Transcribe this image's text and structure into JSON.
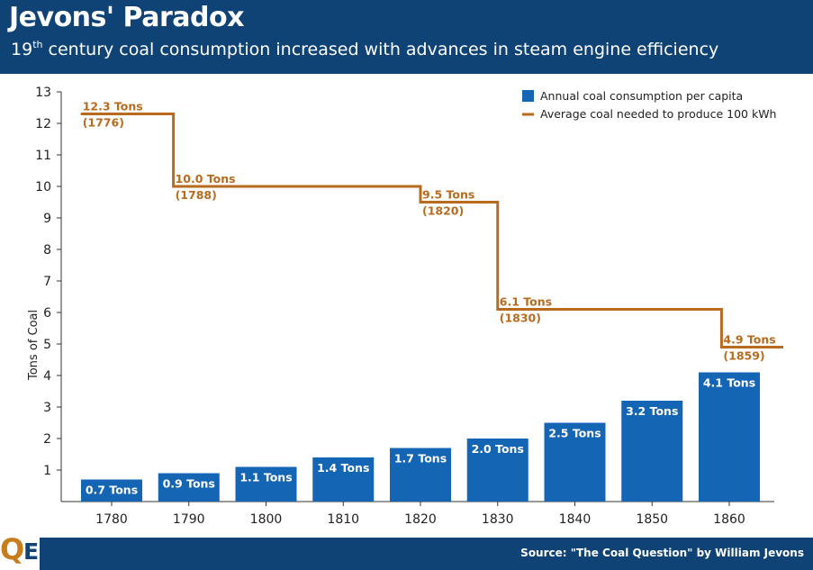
{
  "header": {
    "title": "Jevons' Paradox",
    "subtitle_pre": "19",
    "subtitle_sup": "th",
    "subtitle_post": " century coal consumption increased with advances in steam engine efficiency"
  },
  "footer": {
    "logo_q": "Q",
    "logo_e": "E",
    "source": "Source: \"The Coal Question\" by William Jevons"
  },
  "colors": {
    "header_bg": "#0f4376",
    "bar": "#1565b5",
    "step_line": "#b86b1f",
    "accent": "#c77d1e"
  },
  "chart_data": {
    "type": "bar",
    "ylabel": "Tons of Coal",
    "xlabel": "",
    "ylim": [
      0,
      13
    ],
    "yticks": [
      1,
      2,
      3,
      4,
      5,
      6,
      7,
      8,
      9,
      10,
      11,
      12,
      13
    ],
    "grid": false,
    "legend_position": "top-right",
    "categories": [
      "1780",
      "1790",
      "1800",
      "1810",
      "1820",
      "1830",
      "1840",
      "1850",
      "1860"
    ],
    "series": [
      {
        "name": "Annual coal consumption per capita",
        "type": "bar",
        "values": [
          0.7,
          0.9,
          1.1,
          1.4,
          1.7,
          2.0,
          2.5,
          3.2,
          4.1
        ],
        "labels": [
          "0.7 Tons",
          "0.9 Tons",
          "1.1 Tons",
          "1.4 Tons",
          "1.7 Tons",
          "2.0 Tons",
          "2.5 Tons",
          "3.2 Tons",
          "4.1 Tons"
        ]
      },
      {
        "name": "Average coal needed to produce 100 kWh",
        "type": "step",
        "x_start": 1776,
        "x_end": 1867,
        "points": [
          {
            "year": 1776,
            "value": 12.3,
            "label": "12.3 Tons",
            "year_label": "(1776)"
          },
          {
            "year": 1788,
            "value": 10.0,
            "label": "10.0 Tons",
            "year_label": "(1788)"
          },
          {
            "year": 1820,
            "value": 9.5,
            "label": "9.5 Tons",
            "year_label": "(1820)"
          },
          {
            "year": 1830,
            "value": 6.1,
            "label": "6.1 Tons",
            "year_label": "(1830)"
          },
          {
            "year": 1859,
            "value": 4.9,
            "label": "4.9 Tons",
            "year_label": "(1859)"
          }
        ]
      }
    ]
  }
}
